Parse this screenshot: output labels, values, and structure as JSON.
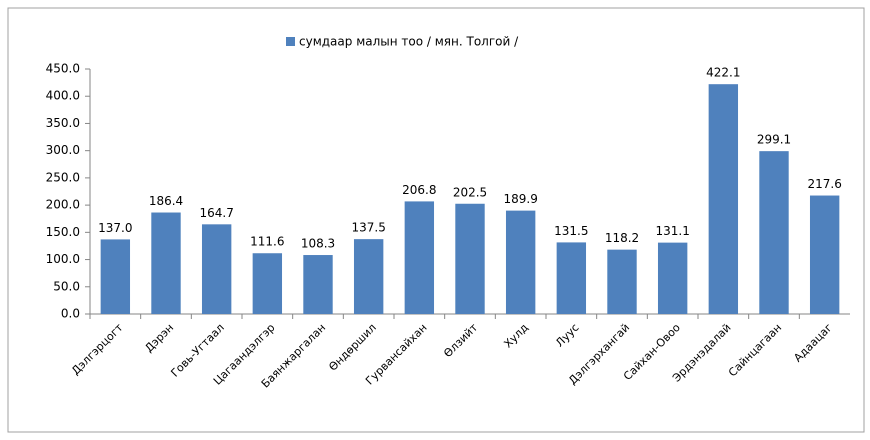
{
  "chart_data": {
    "type": "bar",
    "categories": [
      "Дэлгэрцогт",
      "Дэрэн",
      "Говь-Угтаал",
      "Цагаандэлгэр",
      "Баянжаргалан",
      "Өндөршил",
      "Гурвансайхан",
      "Өлзийт",
      "Хулд",
      "Луус",
      "Дэлгэрхангай",
      "Сайхан-Овоо",
      "Эрдэнэдалай",
      "Сайнцагаан",
      "Адаацаг"
    ],
    "series": [
      {
        "name": "сумдаар малын тоо / мян. Толгой /",
        "color": "#4f81bd",
        "values": [
          137.0,
          186.4,
          164.7,
          111.6,
          108.3,
          137.5,
          206.8,
          202.5,
          189.9,
          131.5,
          118.2,
          131.1,
          422.1,
          299.1,
          217.6
        ],
        "value_labels": [
          "137.0",
          "186.4",
          "164.7",
          "111.6",
          "108.3",
          "137.5",
          "206.8",
          "202.5",
          "189.9",
          "131.5",
          "118.2",
          "131.1",
          "422.1",
          "299.1",
          "217.6"
        ]
      }
    ],
    "ylim": [
      0,
      450
    ],
    "yticks": [
      {
        "value": 0,
        "label": "0.0"
      },
      {
        "value": 50,
        "label": "50.0"
      },
      {
        "value": 100,
        "label": "100.0"
      },
      {
        "value": 150,
        "label": "150.0"
      },
      {
        "value": 200,
        "label": "200.0"
      },
      {
        "value": 250,
        "label": "250.0"
      },
      {
        "value": 300,
        "label": "300.0"
      },
      {
        "value": 350,
        "label": "350.0"
      },
      {
        "value": 400,
        "label": "400.0"
      },
      {
        "value": 450,
        "label": "450.0"
      }
    ],
    "grid": false,
    "legend": "top"
  }
}
